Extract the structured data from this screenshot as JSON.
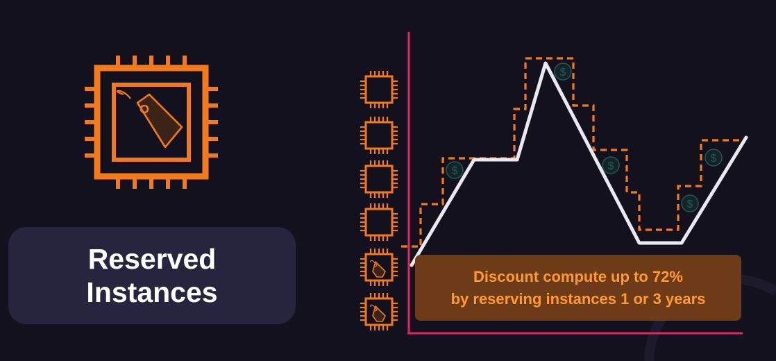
{
  "title": {
    "line1": "Reserved",
    "line2": "Instances"
  },
  "callout": {
    "line1": "Discount compute up to 72%",
    "line2": "by reserving instances 1 or 3 years"
  },
  "colors": {
    "background": "#14111f",
    "title_box": "#27243d",
    "accent_orange": "#f27a1a",
    "axis_pink": "#e0285f",
    "usage_line": "#e9e9f2",
    "callout_bg": "#6e3b18",
    "callout_text": "#ff9a2e"
  },
  "icons": {
    "main": "ec2-instance-with-price-tag-icon",
    "stack": [
      "chip-icon",
      "chip-icon",
      "chip-icon",
      "chip-icon",
      "chip-tag-icon",
      "chip-tag-icon"
    ],
    "savings": "dollar-coin-icon"
  }
}
